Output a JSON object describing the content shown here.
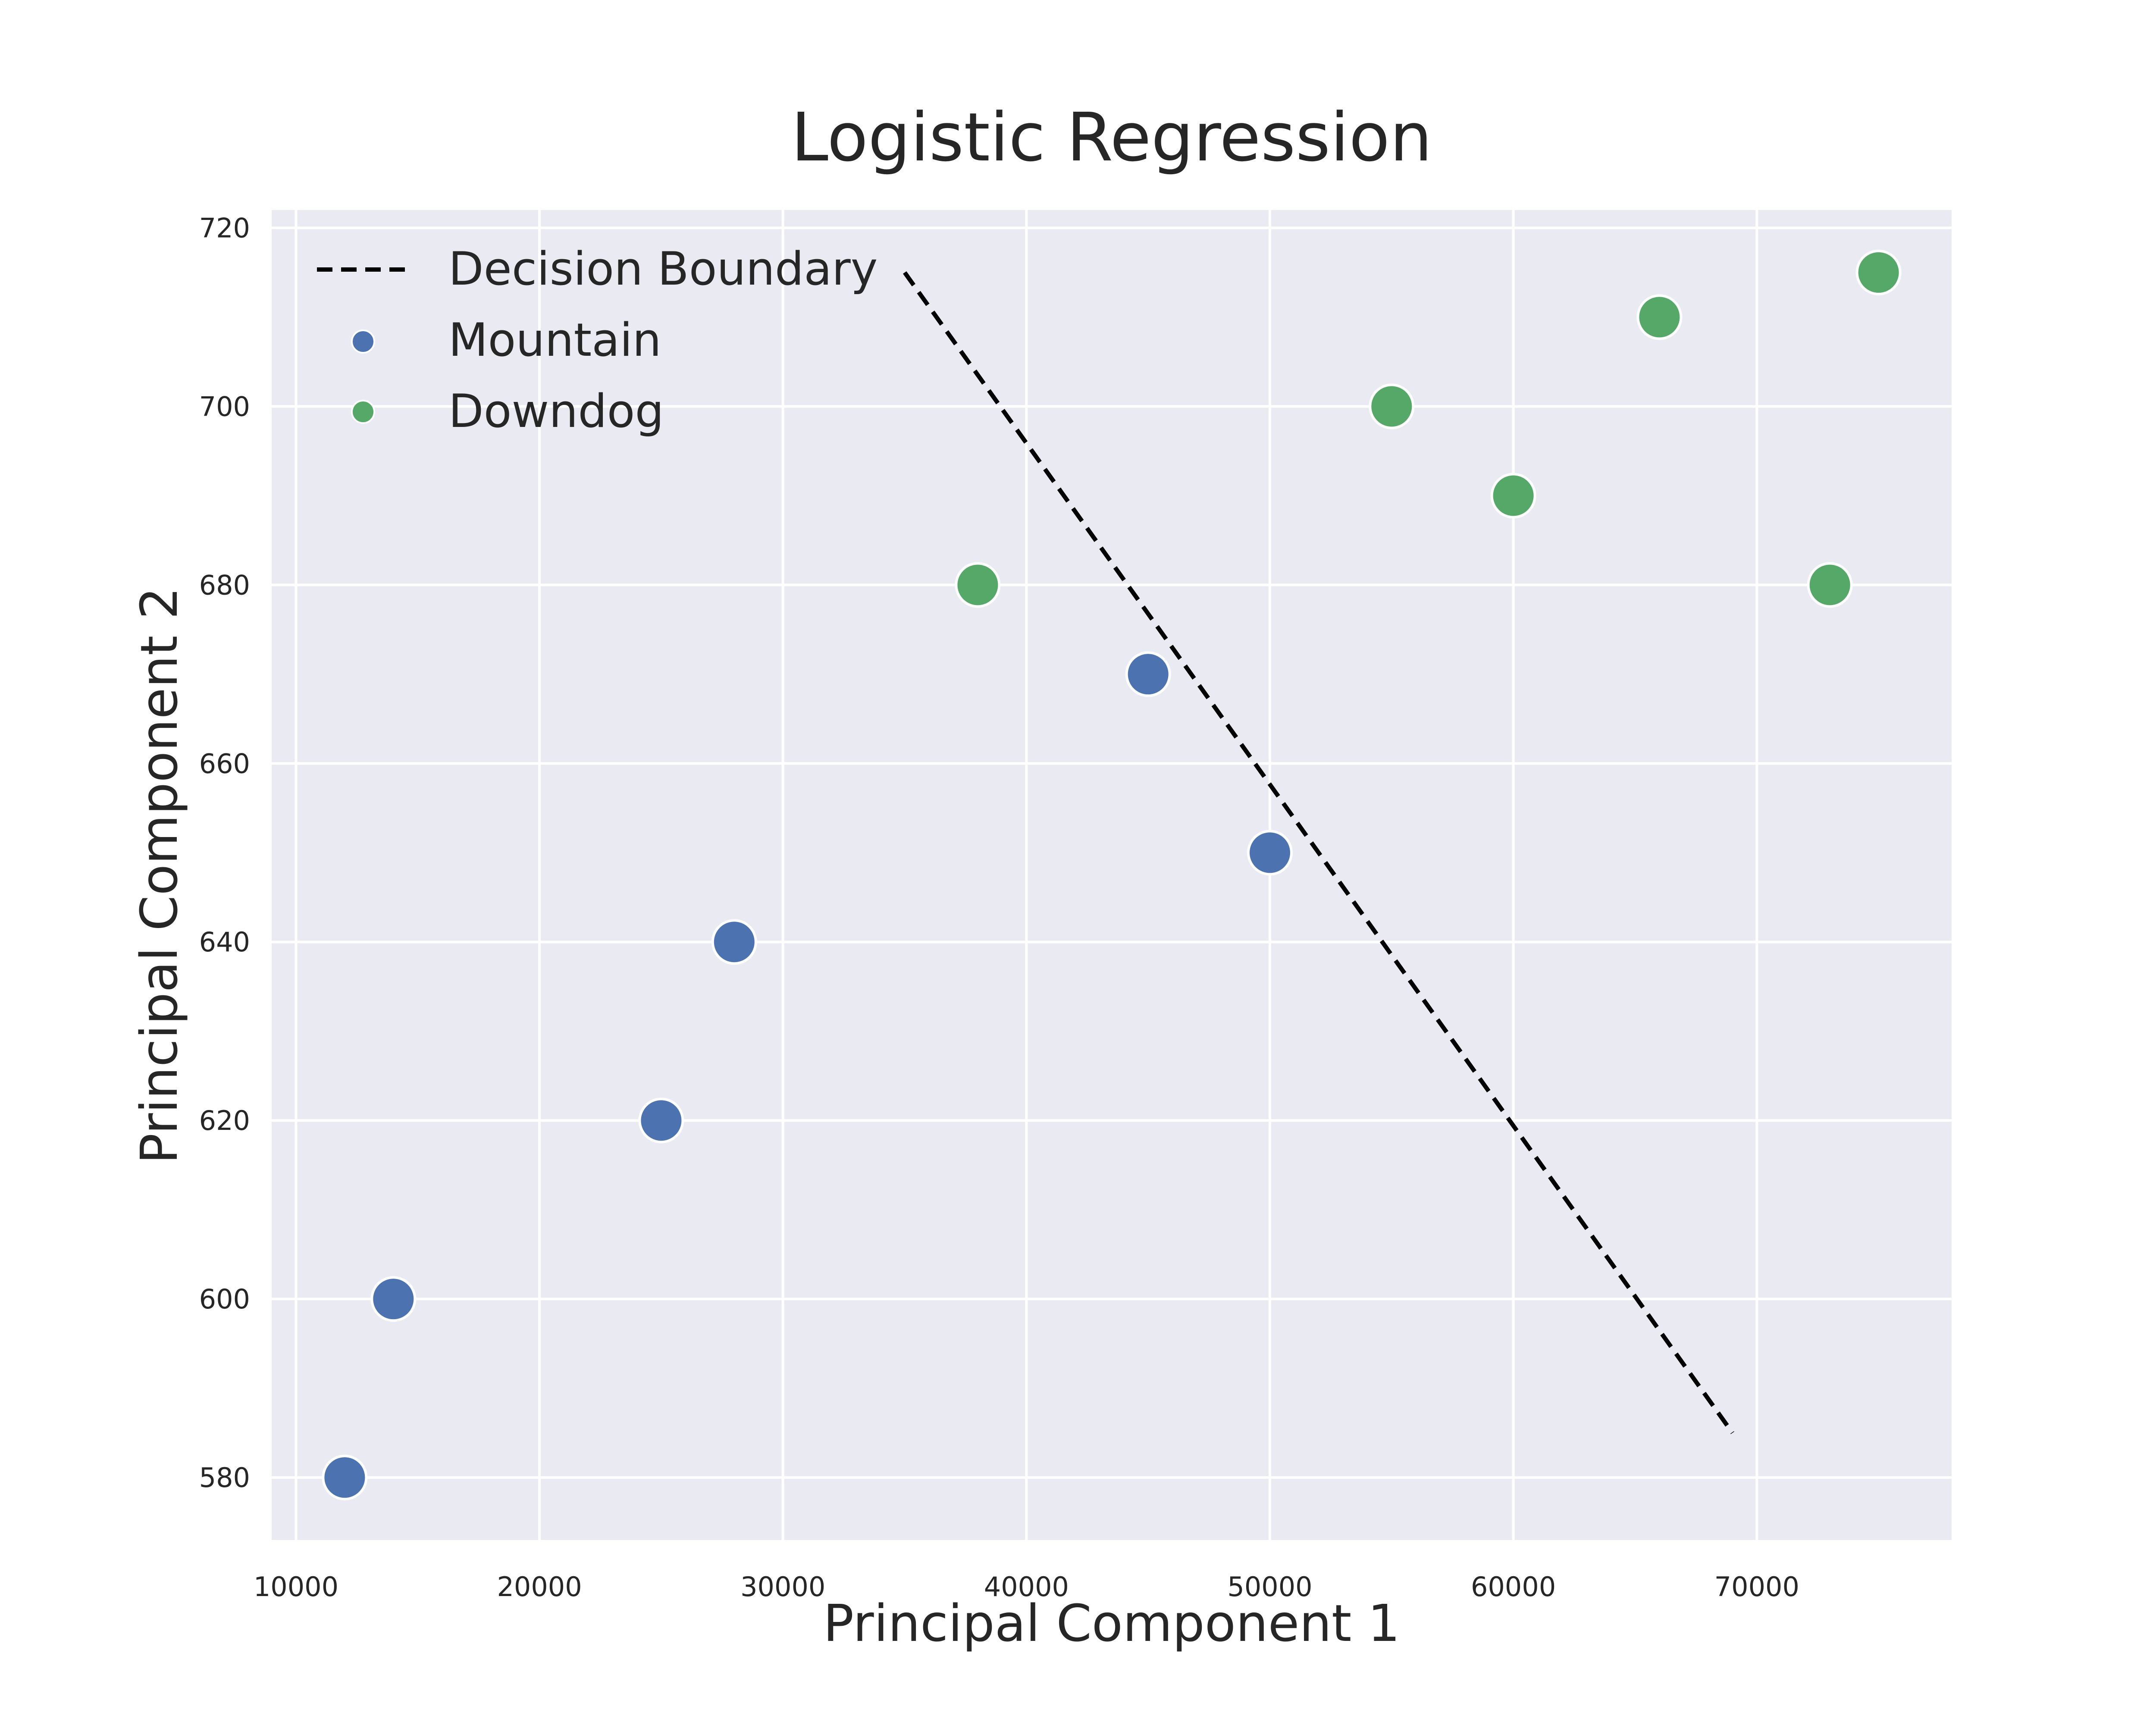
{
  "chart_data": {
    "type": "scatter",
    "title": "Logistic Regression",
    "xlabel": "Principal Component 1",
    "ylabel": "Principal Component 2",
    "xlim": [
      9000,
      78000
    ],
    "ylim": [
      573,
      722
    ],
    "xticks": [
      10000,
      20000,
      30000,
      40000,
      50000,
      60000,
      70000
    ],
    "yticks": [
      580,
      600,
      620,
      640,
      660,
      680,
      700,
      720
    ],
    "xtick_labels": [
      "10000",
      "20000",
      "30000",
      "40000",
      "50000",
      "60000",
      "70000"
    ],
    "ytick_labels": [
      "580",
      "600",
      "620",
      "640",
      "660",
      "680",
      "700",
      "720"
    ],
    "grid": true,
    "legend_position": "top-left",
    "background_color": "#eaeaf2",
    "series": [
      {
        "name": "Mountain",
        "color": "#4c72b0",
        "points": [
          {
            "x": 12000,
            "y": 580
          },
          {
            "x": 14000,
            "y": 600
          },
          {
            "x": 25000,
            "y": 620
          },
          {
            "x": 28000,
            "y": 640
          },
          {
            "x": 45000,
            "y": 670
          },
          {
            "x": 50000,
            "y": 650
          }
        ]
      },
      {
        "name": "Downdog",
        "color": "#55a868",
        "points": [
          {
            "x": 38000,
            "y": 680
          },
          {
            "x": 55000,
            "y": 700
          },
          {
            "x": 60000,
            "y": 690
          },
          {
            "x": 66000,
            "y": 710
          },
          {
            "x": 73000,
            "y": 680
          },
          {
            "x": 75000,
            "y": 715
          }
        ]
      }
    ],
    "decision_boundary": {
      "name": "Decision Boundary",
      "color": "#000000",
      "style": "dashed",
      "points": [
        {
          "x": 35000,
          "y": 715
        },
        {
          "x": 69000,
          "y": 585
        }
      ]
    },
    "legend": [
      "Decision Boundary",
      "Mountain",
      "Downdog"
    ]
  }
}
